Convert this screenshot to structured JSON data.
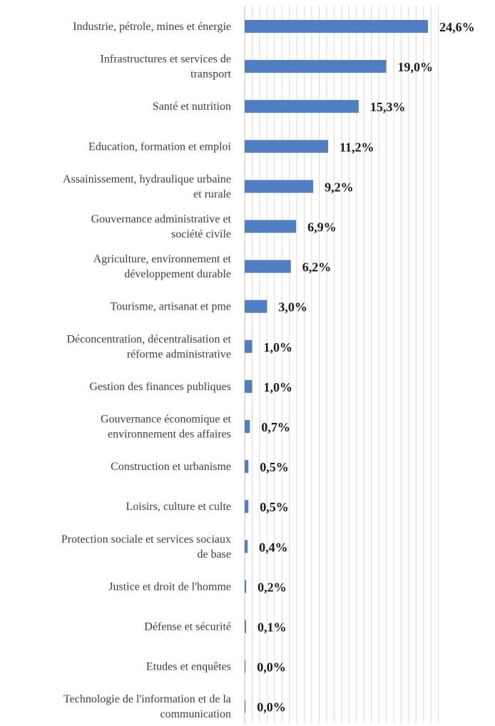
{
  "chart_data": {
    "type": "bar",
    "orientation": "horizontal",
    "title": "",
    "xlabel": "",
    "ylabel": "",
    "grid": true,
    "bar_color": "#4f7fc2",
    "xlim": [
      0,
      26.5
    ],
    "categories": [
      [
        "Industrie, pétrole, mines et énergie"
      ],
      [
        "Infrastructures et services de",
        "transport"
      ],
      [
        "Santé et nutrition"
      ],
      [
        "Education, formation et emploi"
      ],
      [
        "Assainissement, hydraulique urbaine",
        "et rurale"
      ],
      [
        "Gouvernance administrative et",
        "société civile"
      ],
      [
        "Agriculture, environnement et",
        "développement durable"
      ],
      [
        "Tourisme, artisanat et pme"
      ],
      [
        "Déconcentration, décentralisation et",
        "réforme administrative"
      ],
      [
        "Gestion des finances publiques"
      ],
      [
        "Gouvernance économique et",
        "environnement des affaires"
      ],
      [
        "Construction et urbanisme"
      ],
      [
        "Loisirs, culture et culte"
      ],
      [
        "Protection sociale et services sociaux",
        "de base"
      ],
      [
        "Justice et droit de l'homme"
      ],
      [
        "Défense et sécurité"
      ],
      [
        "Etudes et enquêtes"
      ],
      [
        "Technologie de l'information et de la",
        "communication"
      ]
    ],
    "values": [
      24.6,
      19.0,
      15.3,
      11.2,
      9.2,
      6.9,
      6.2,
      3.0,
      1.0,
      1.0,
      0.7,
      0.5,
      0.5,
      0.4,
      0.2,
      0.1,
      0.0,
      0.0
    ],
    "value_labels": [
      "24,6%",
      "19,0%",
      "15,3%",
      "11,2%",
      "9,2%",
      "6,9%",
      "6,2%",
      "3,0%",
      "1,0%",
      "1,0%",
      "0,7%",
      "0,5%",
      "0,5%",
      "0,4%",
      "0,2%",
      "0,1%",
      "0,0%",
      "0,0%"
    ]
  }
}
